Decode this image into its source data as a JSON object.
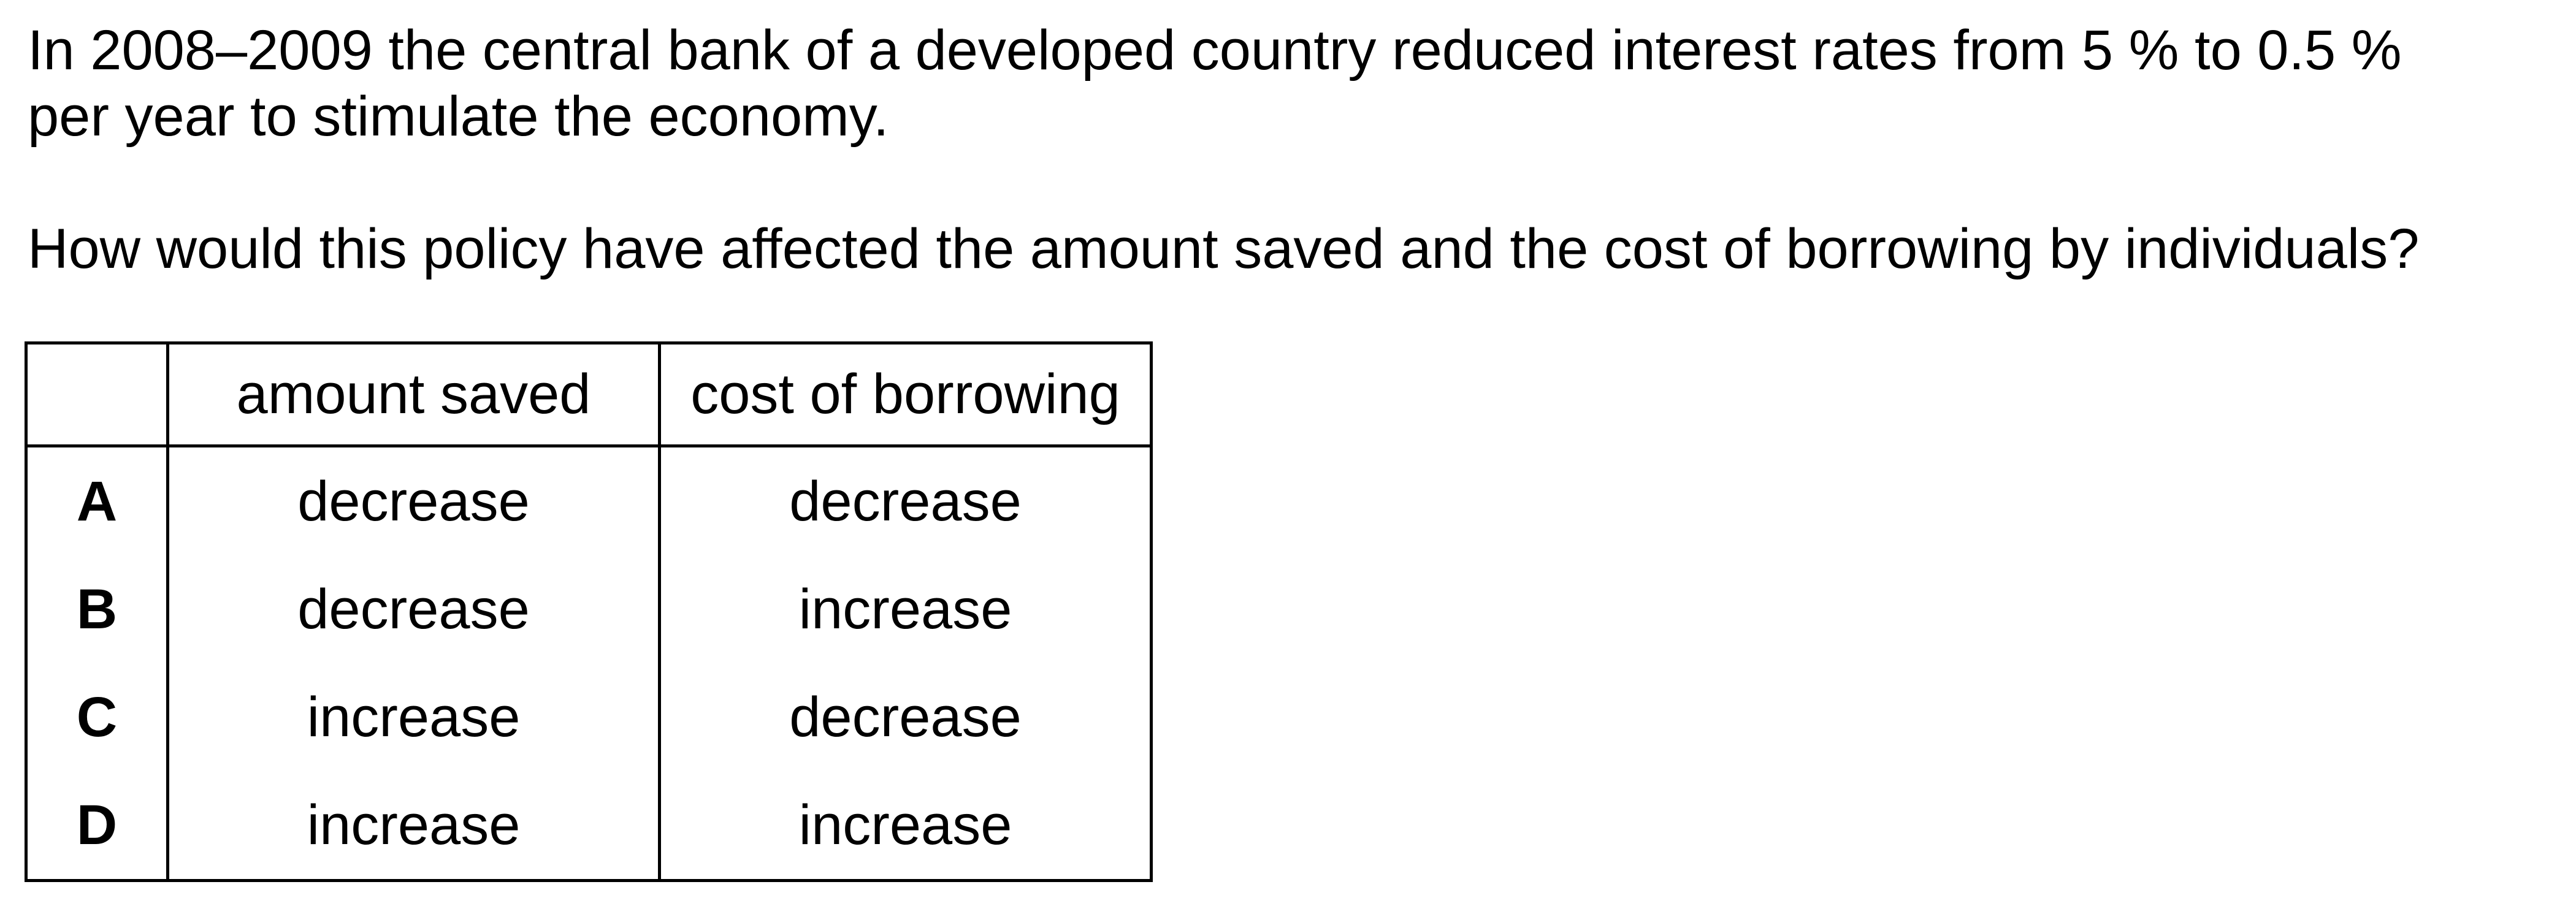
{
  "question": {
    "line1": "In 2008–2009 the central bank of a developed country reduced interest rates from 5 % to 0.5 %",
    "line2": "per year to stimulate the economy.",
    "prompt": "How would this policy have affected the amount saved and the cost of borrowing by individuals?"
  },
  "table": {
    "headers": [
      "",
      "amount saved",
      "cost of borrowing"
    ],
    "rows": [
      {
        "letter": "A",
        "amount_saved": "decrease",
        "cost_of_borrowing": "decrease"
      },
      {
        "letter": "B",
        "amount_saved": "decrease",
        "cost_of_borrowing": "increase"
      },
      {
        "letter": "C",
        "amount_saved": "increase",
        "cost_of_borrowing": "decrease"
      },
      {
        "letter": "D",
        "amount_saved": "increase",
        "cost_of_borrowing": "increase"
      }
    ]
  }
}
